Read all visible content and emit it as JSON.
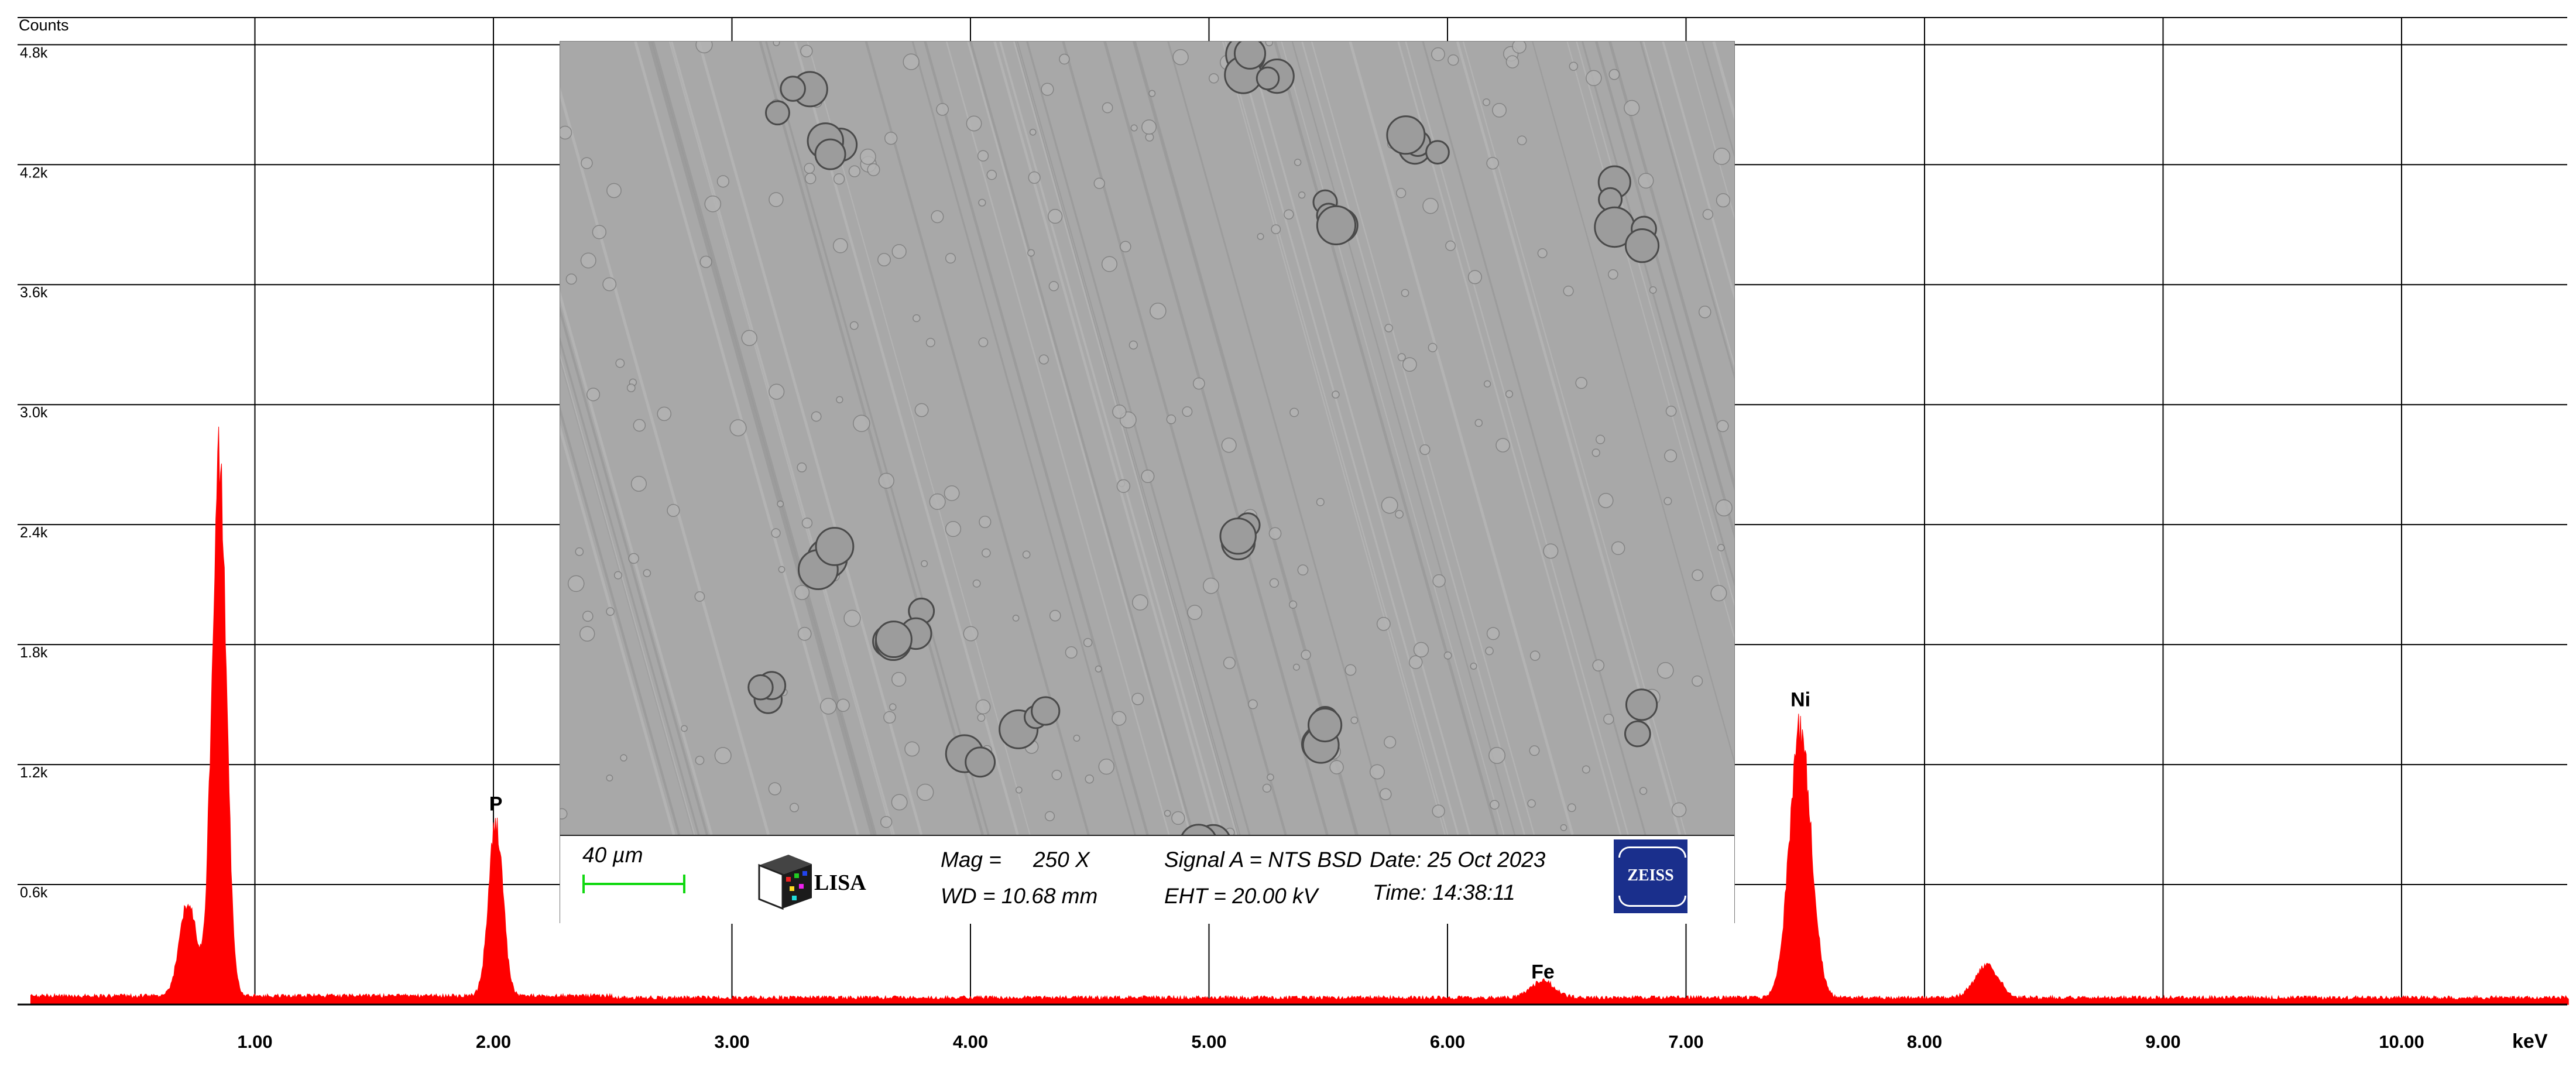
{
  "chart_data": {
    "type": "area",
    "title": "",
    "ylabel": "Counts",
    "xlabel": "keV",
    "xlim": [
      0,
      10.7
    ],
    "ylim": [
      0,
      4.8
    ],
    "y_unit": "k counts",
    "x_ticks": [
      "1.00",
      "2.00",
      "3.00",
      "4.00",
      "5.00",
      "6.00",
      "7.00",
      "8.00",
      "9.00",
      "10.00"
    ],
    "y_ticks": [
      "0.6k",
      "1.2k",
      "1.8k",
      "2.4k",
      "3.0k",
      "3.6k",
      "4.2k",
      "4.8k"
    ],
    "grid": true,
    "series_color": "#ff0000",
    "peaks": [
      {
        "label": "",
        "energy": 0.72,
        "height": 0.52,
        "width": 0.035
      },
      {
        "label": "",
        "energy": 0.85,
        "height": 2.9,
        "width": 0.03
      },
      {
        "label": "P",
        "energy": 2.01,
        "height": 0.93,
        "width": 0.03
      },
      {
        "label": "Fe",
        "energy": 6.4,
        "height": 0.09,
        "width": 0.05
      },
      {
        "label": "Ni",
        "energy": 7.48,
        "height": 1.45,
        "width": 0.045
      },
      {
        "label": "",
        "energy": 8.26,
        "height": 0.17,
        "width": 0.05
      }
    ],
    "background_level": 0.03
  },
  "inset": {
    "scale_label": "40 µm",
    "lisa_text": "LISA",
    "mag": "Mag =",
    "mag_value": "250 X",
    "wd": "WD = 10.68 mm",
    "signal": "Signal A = NTS BSD",
    "eht": "EHT = 20.00 kV",
    "date": "Date: 25 Oct 2023",
    "time": "Time: 14:38:11",
    "zeiss_text": "ZEISS",
    "image_color": "#a8a8a8"
  }
}
